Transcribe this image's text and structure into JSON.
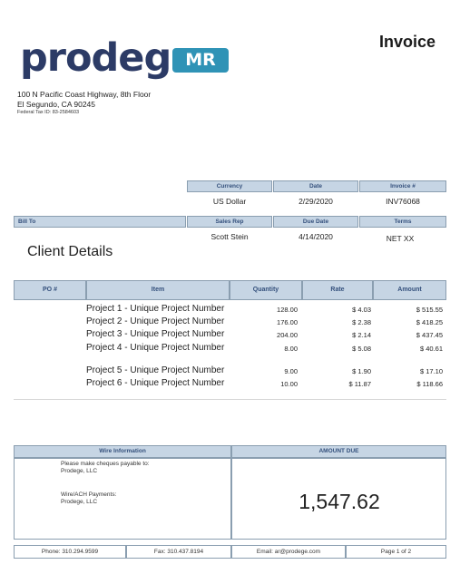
{
  "brand": {
    "wordmark": "prodege",
    "badge": "MR"
  },
  "title": "Invoice",
  "company": {
    "address_line1": "100 N Pacific Coast Highway, 8th Floor",
    "address_line2": "El Segundo, CA 90245",
    "tax_id": "Federal Tax ID: 83-2584603"
  },
  "meta": {
    "currency_label": "Currency",
    "currency_value": "US Dollar",
    "date_label": "Date",
    "date_value": "2/29/2020",
    "invoice_label": "Invoice #",
    "invoice_value": "INV76068",
    "billto_label": "Bill To",
    "salesrep_label": "Sales Rep",
    "salesrep_value": "Scott Stein",
    "duedate_label": "Due Date",
    "duedate_value": "4/14/2020",
    "terms_label": "Terms",
    "terms_value": "NET XX"
  },
  "client": "Client Details",
  "items_header": {
    "po": "PO #",
    "item": "Item",
    "quantity": "Quantity",
    "rate": "Rate",
    "amount": "Amount"
  },
  "items": [
    {
      "name": "Project 1 - Unique Project Number",
      "quantity": "128.00",
      "rate": "$ 4.03",
      "amount": "$ 515.55"
    },
    {
      "name": "Project 2 - Unique Project Number",
      "quantity": "176.00",
      "rate": "$ 2.38",
      "amount": "$ 418.25"
    },
    {
      "name": "Project 3 - Unique Project Number",
      "quantity": "204.00",
      "rate": "$ 2.14",
      "amount": "$ 437.45"
    },
    {
      "name": "Project 4 - Unique Project Number",
      "quantity": "8.00",
      "rate": "$ 5.08",
      "amount": "$ 40.61"
    },
    {
      "name": "Project 5 - Unique Project Number",
      "quantity": "9.00",
      "rate": "$ 1.90",
      "amount": "$ 17.10"
    },
    {
      "name": "Project 6 - Unique Project Number",
      "quantity": "10.00",
      "rate": "$ 11.87",
      "amount": "$ 118.66"
    }
  ],
  "wire": {
    "header": "Wire Information",
    "cheque_line1": "Please make cheques payable to:",
    "cheque_line2": "Prodege, LLC",
    "ach_line1": "Wire/ACH Payments:",
    "ach_line2": "Prodege, LLC"
  },
  "amount_due": {
    "label": "AMOUNT DUE",
    "value": "1,547.62"
  },
  "footer": {
    "phone": "Phone: 310.294.9599",
    "fax": "Fax: 310.437.8194",
    "email": "Email: ar@prodege.com",
    "page": "Page 1 of 2"
  }
}
